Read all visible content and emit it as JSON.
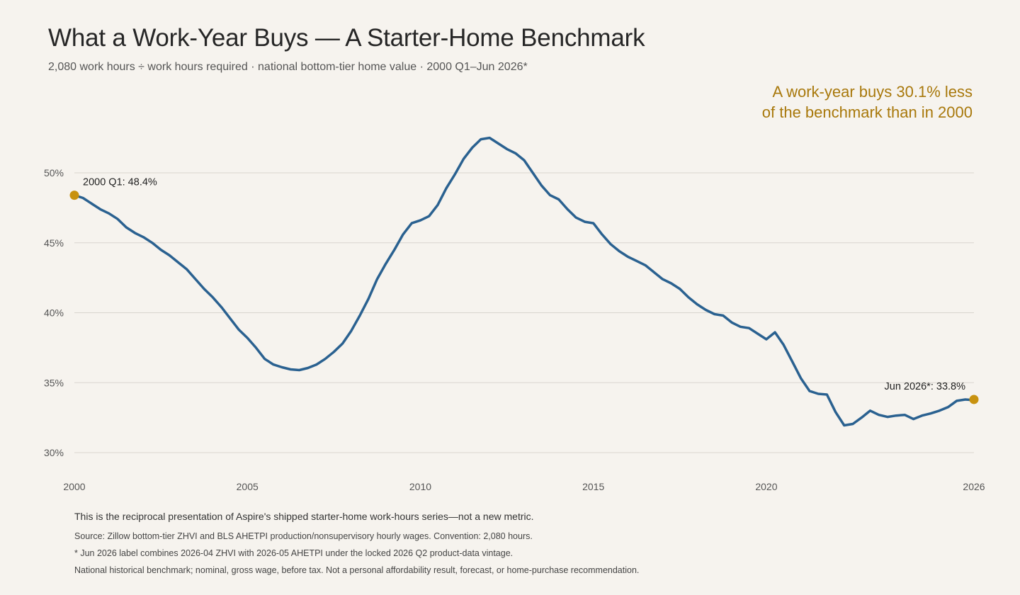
{
  "title": "What a Work-Year Buys — A Starter-Home Benchmark",
  "subtitle": "2,080 work hours ÷ work hours required · national bottom-tier home value · 2000 Q1–Jun 2026*",
  "callout": {
    "line1": "A work-year buys 30.1% less",
    "line2": "of the benchmark than in 2000",
    "color": "#a8780b"
  },
  "notes": {
    "main": "This is the reciprocal presentation of Aspire's shipped starter-home work-hours series—not a new metric.",
    "source": "Source: Zillow bottom-tier ZHVI and BLS AHETPI production/nonsupervisory hourly wages. Convention: 2,080 hours.",
    "vintage": "* Jun 2026 label combines 2026-04 ZHVI with 2026-05 AHETPI under the locked 2026 Q2 product-data vintage.",
    "disclaimer": "National historical benchmark; nominal, gross wage, before tax. Not a personal affordability result, forecast, or home-purchase recommendation."
  },
  "chart_data": {
    "type": "line",
    "title": "What a Work-Year Buys — A Starter-Home Benchmark",
    "xlabel": "",
    "ylabel": "",
    "xlim": [
      2000,
      2026
    ],
    "ylim": [
      30,
      53
    ],
    "x_ticks": [
      {
        "value": 2000,
        "label": "2000"
      },
      {
        "value": 2005,
        "label": "2005"
      },
      {
        "value": 2010,
        "label": "2010"
      },
      {
        "value": 2015,
        "label": "2015"
      },
      {
        "value": 2020,
        "label": "2020"
      },
      {
        "value": 2026,
        "label": "2026"
      }
    ],
    "y_ticks": [
      {
        "value": 30,
        "label": "30%"
      },
      {
        "value": 35,
        "label": "35%"
      },
      {
        "value": 40,
        "label": "40%"
      },
      {
        "value": 45,
        "label": "45%"
      },
      {
        "value": 50,
        "label": "50%"
      }
    ],
    "grid": "horizontal",
    "line_color": "#2a6190",
    "marker_color": "#c8920f",
    "series": [
      {
        "values": [
          [
            2000.0,
            48.4
          ],
          [
            2000.25,
            48.2
          ],
          [
            2000.5,
            47.8
          ],
          [
            2000.75,
            47.4
          ],
          [
            2001.0,
            47.1
          ],
          [
            2001.25,
            46.7
          ],
          [
            2001.5,
            46.1
          ],
          [
            2001.75,
            45.7
          ],
          [
            2002.0,
            45.4
          ],
          [
            2002.25,
            45.0
          ],
          [
            2002.5,
            44.5
          ],
          [
            2002.75,
            44.1
          ],
          [
            2003.0,
            43.6
          ],
          [
            2003.25,
            43.1
          ],
          [
            2003.5,
            42.4
          ],
          [
            2003.75,
            41.7
          ],
          [
            2004.0,
            41.1
          ],
          [
            2004.25,
            40.4
          ],
          [
            2004.5,
            39.6
          ],
          [
            2004.75,
            38.8
          ],
          [
            2005.0,
            38.2
          ],
          [
            2005.25,
            37.5
          ],
          [
            2005.5,
            36.7
          ],
          [
            2005.75,
            36.3
          ],
          [
            2006.0,
            36.1
          ],
          [
            2006.25,
            35.95
          ],
          [
            2006.5,
            35.9
          ],
          [
            2006.75,
            36.05
          ],
          [
            2007.0,
            36.3
          ],
          [
            2007.25,
            36.7
          ],
          [
            2007.5,
            37.2
          ],
          [
            2007.75,
            37.8
          ],
          [
            2008.0,
            38.7
          ],
          [
            2008.25,
            39.8
          ],
          [
            2008.5,
            41.0
          ],
          [
            2008.75,
            42.4
          ],
          [
            2009.0,
            43.5
          ],
          [
            2009.25,
            44.5
          ],
          [
            2009.5,
            45.6
          ],
          [
            2009.75,
            46.4
          ],
          [
            2010.0,
            46.6
          ],
          [
            2010.25,
            46.9
          ],
          [
            2010.5,
            47.7
          ],
          [
            2010.75,
            48.9
          ],
          [
            2011.0,
            49.9
          ],
          [
            2011.25,
            51.0
          ],
          [
            2011.5,
            51.8
          ],
          [
            2011.75,
            52.4
          ],
          [
            2012.0,
            52.5
          ],
          [
            2012.25,
            52.1
          ],
          [
            2012.5,
            51.7
          ],
          [
            2012.75,
            51.4
          ],
          [
            2013.0,
            50.9
          ],
          [
            2013.25,
            50.0
          ],
          [
            2013.5,
            49.1
          ],
          [
            2013.75,
            48.4
          ],
          [
            2014.0,
            48.1
          ],
          [
            2014.25,
            47.4
          ],
          [
            2014.5,
            46.8
          ],
          [
            2014.75,
            46.5
          ],
          [
            2015.0,
            46.4
          ],
          [
            2015.25,
            45.6
          ],
          [
            2015.5,
            44.9
          ],
          [
            2015.75,
            44.4
          ],
          [
            2016.0,
            44.0
          ],
          [
            2016.25,
            43.7
          ],
          [
            2016.5,
            43.4
          ],
          [
            2016.75,
            42.9
          ],
          [
            2017.0,
            42.4
          ],
          [
            2017.25,
            42.1
          ],
          [
            2017.5,
            41.7
          ],
          [
            2017.75,
            41.1
          ],
          [
            2018.0,
            40.6
          ],
          [
            2018.25,
            40.2
          ],
          [
            2018.5,
            39.9
          ],
          [
            2018.75,
            39.8
          ],
          [
            2019.0,
            39.3
          ],
          [
            2019.25,
            39.0
          ],
          [
            2019.5,
            38.9
          ],
          [
            2019.75,
            38.5
          ],
          [
            2020.0,
            38.1
          ],
          [
            2020.25,
            38.6
          ],
          [
            2020.5,
            37.7
          ],
          [
            2020.75,
            36.5
          ],
          [
            2021.0,
            35.3
          ],
          [
            2021.25,
            34.4
          ],
          [
            2021.5,
            34.2
          ],
          [
            2021.75,
            34.15
          ],
          [
            2022.0,
            32.9
          ],
          [
            2022.25,
            31.95
          ],
          [
            2022.5,
            32.05
          ],
          [
            2022.75,
            32.5
          ],
          [
            2023.0,
            33.0
          ],
          [
            2023.25,
            32.7
          ],
          [
            2023.5,
            32.55
          ],
          [
            2023.75,
            32.65
          ],
          [
            2024.0,
            32.7
          ],
          [
            2024.25,
            32.4
          ],
          [
            2024.5,
            32.65
          ],
          [
            2024.75,
            32.8
          ],
          [
            2025.0,
            33.0
          ],
          [
            2025.25,
            33.25
          ],
          [
            2025.5,
            33.7
          ],
          [
            2025.75,
            33.8
          ],
          [
            2026.0,
            33.75
          ],
          [
            2026.0,
            33.8
          ]
        ]
      }
    ],
    "annotations": [
      {
        "x": 2000.0,
        "y": 48.4,
        "label": "2000 Q1: 48.4%",
        "position": "above-right"
      },
      {
        "x": 2026.0,
        "y": 33.8,
        "label": "Jun 2026*: 33.8%",
        "position": "above-left"
      }
    ]
  }
}
